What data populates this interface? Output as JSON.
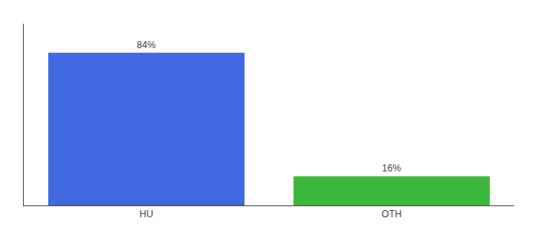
{
  "chart_data": {
    "type": "bar",
    "categories": [
      "HU",
      "OTH"
    ],
    "values": [
      84,
      16
    ],
    "value_labels": [
      "84%",
      "16%"
    ],
    "colors": [
      "#4169e1",
      "#3cb83c"
    ],
    "ylim": [
      0,
      100
    ],
    "data_labels": true,
    "tick_labels": "x",
    "grid": false
  }
}
